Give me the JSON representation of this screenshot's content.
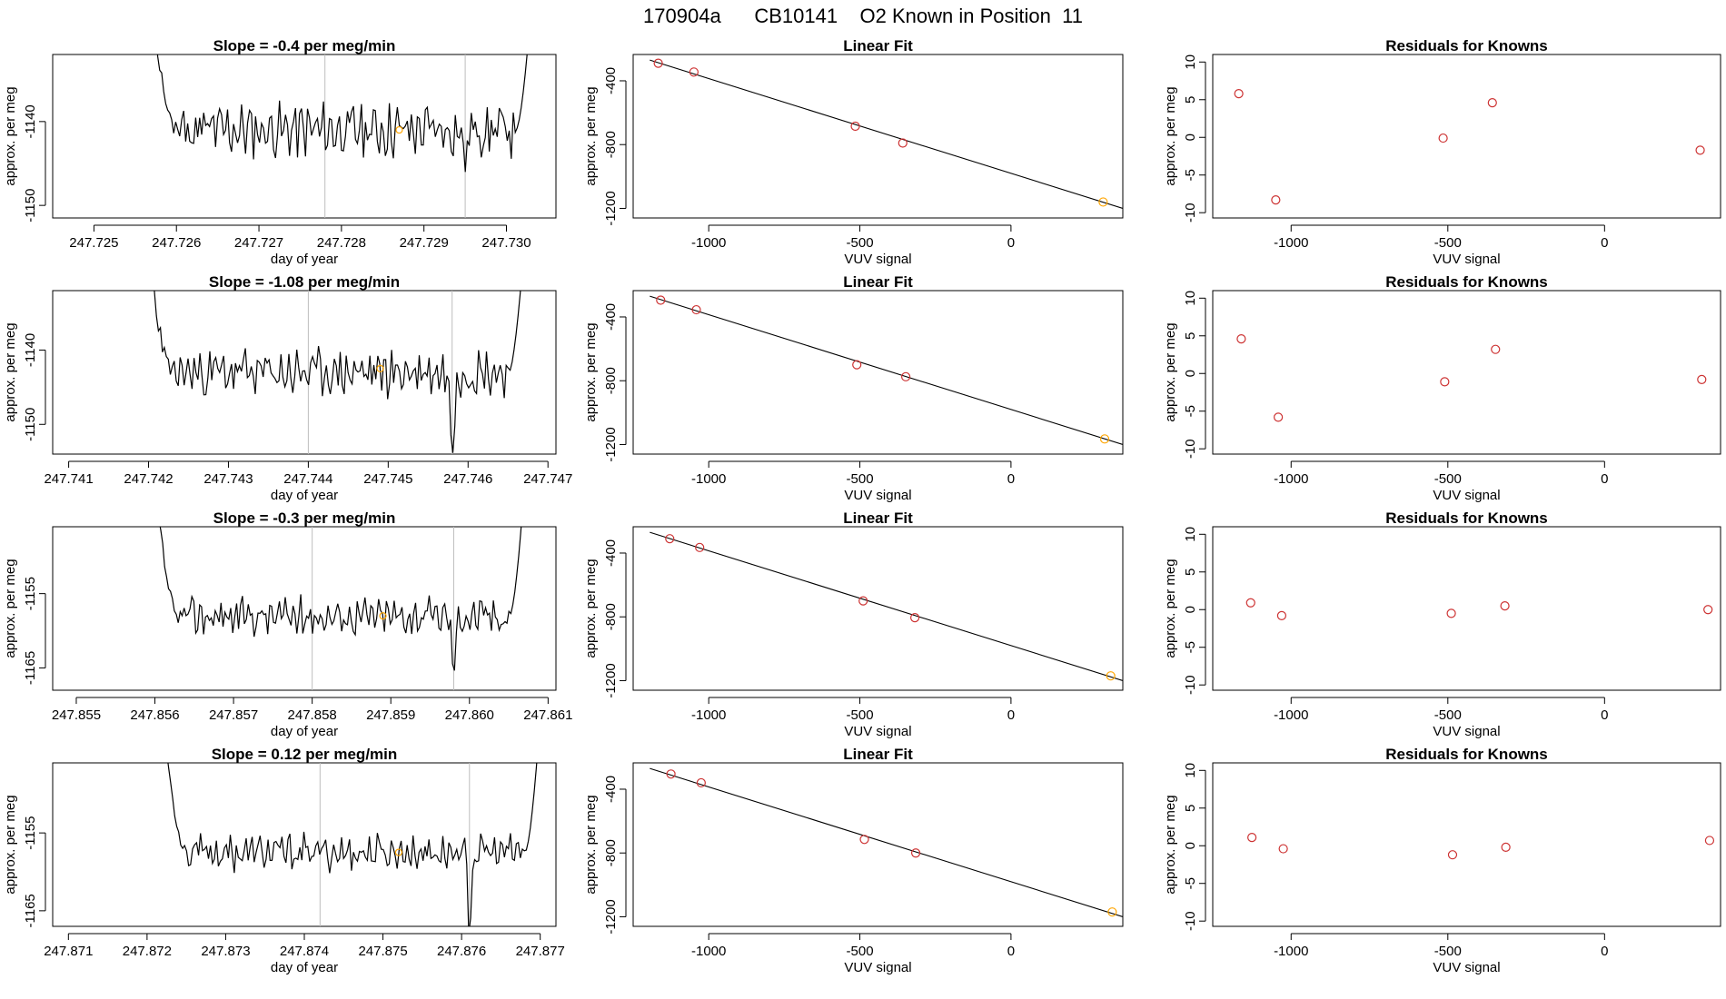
{
  "title": "170904a      CB10141    O2 Known in Position  11",
  "colors": {
    "trace": "#000000",
    "marker": "#ffa500",
    "residual": "#cd3333",
    "vline": "#bebebe",
    "fit": "#000000"
  },
  "chart_data": [
    {
      "type": "line",
      "panel": "trace-1",
      "row": 1,
      "title": "Slope =  -0.4  per meg/min",
      "xlabel": "day of year",
      "ylabel": "approx. per meg",
      "xlim": [
        247.7245,
        247.7306
      ],
      "xticks": [
        247.725,
        247.726,
        247.727,
        247.728,
        247.729,
        247.73
      ],
      "xtick_labels": [
        "247.725",
        "247.726",
        "247.727",
        "247.728",
        "247.729",
        "247.730"
      ],
      "ylim": [
        -1151.5,
        -1132
      ],
      "yticks": [
        -1140,
        -1150
      ],
      "ytick_labels": [
        "-1140",
        "-1150"
      ],
      "x_start": 247.7257,
      "x_end": 247.7303,
      "level": -1141,
      "noise": 2.5,
      "low_x": 247.7295,
      "low_y": -1145,
      "vlines": [
        247.7278,
        247.7295
      ],
      "marker": {
        "x": 247.7287,
        "y": -1141
      },
      "seed": 11
    },
    {
      "type": "line",
      "panel": "trace-2",
      "row": 2,
      "title": "Slope =  -1.08  per meg/min",
      "xlabel": "day of year",
      "ylabel": "approx. per meg",
      "xlim": [
        247.7408,
        247.7471
      ],
      "xticks": [
        247.741,
        247.742,
        247.743,
        247.744,
        247.745,
        247.746,
        247.747
      ],
      "xtick_labels": [
        "247.741",
        "247.742",
        "247.743",
        "247.744",
        "247.745",
        "247.746",
        "247.747"
      ],
      "ylim": [
        -1154,
        -1132
      ],
      "yticks": [
        -1140,
        -1150
      ],
      "ytick_labels": [
        "-1140",
        "-1150"
      ],
      "x_start": 247.742,
      "x_end": 247.7467,
      "level": -1143,
      "noise": 2.5,
      "low_x": 247.7458,
      "low_y": -1154,
      "vlines": [
        247.744,
        247.7458
      ],
      "marker": {
        "x": 247.7449,
        "y": -1142.5
      },
      "seed": 23
    },
    {
      "type": "line",
      "panel": "trace-3",
      "row": 3,
      "title": "Slope =  -0.3  per meg/min",
      "xlabel": "day of year",
      "ylabel": "approx. per meg",
      "xlim": [
        247.8547,
        247.8611
      ],
      "xticks": [
        247.855,
        247.856,
        247.857,
        247.858,
        247.859,
        247.86,
        247.861
      ],
      "xtick_labels": [
        "247.855",
        "247.856",
        "247.857",
        "247.858",
        "247.859",
        "247.860",
        "247.861"
      ],
      "ylim": [
        -1168,
        -1146
      ],
      "yticks": [
        -1155,
        -1165
      ],
      "ytick_labels": [
        "-1155",
        "-1165"
      ],
      "x_start": 247.856,
      "x_end": 247.8607,
      "level": -1158,
      "noise": 2.0,
      "low_x": 247.8598,
      "low_y": -1166,
      "vlines": [
        247.858,
        247.8598
      ],
      "marker": {
        "x": 247.8589,
        "y": -1158
      },
      "seed": 37
    },
    {
      "type": "line",
      "panel": "trace-4",
      "row": 4,
      "title": "Slope =  0.12  per meg/min",
      "xlabel": "day of year",
      "ylabel": "approx. per meg",
      "xlim": [
        247.8708,
        247.8772
      ],
      "xticks": [
        247.871,
        247.872,
        247.873,
        247.874,
        247.875,
        247.876,
        247.877
      ],
      "xtick_labels": [
        "247.871",
        "247.872",
        "247.873",
        "247.874",
        "247.875",
        "247.876",
        "247.877"
      ],
      "ylim": [
        -1167,
        -1146
      ],
      "yticks": [
        -1155,
        -1165
      ],
      "ytick_labels": [
        "-1155",
        "-1165"
      ],
      "x_start": 247.8722,
      "x_end": 247.877,
      "level": -1157.5,
      "noise": 1.8,
      "low_x": 247.8761,
      "low_y": -1167,
      "vlines": [
        247.8742,
        247.8761
      ],
      "marker": {
        "x": 247.8752,
        "y": -1157.5
      },
      "seed": 53
    },
    {
      "type": "scatter",
      "panel": "fit-1",
      "row": 1,
      "title": "Linear Fit",
      "xlabel": "VUV signal",
      "ylabel": "approx. per meg",
      "xlim": [
        -1250,
        370
      ],
      "ylim": [
        -1260,
        -235
      ],
      "xticks": [
        -1000,
        -500,
        0
      ],
      "xtick_labels": [
        "-1000",
        "-500",
        "0"
      ],
      "yticks": [
        -400,
        -800,
        -1200
      ],
      "ytick_labels": [
        "-400",
        "-800",
        "-1200"
      ],
      "x": [
        -1167,
        -1049,
        -515,
        -358,
        305
      ],
      "y": [
        -290,
        -345,
        -685,
        -790,
        -1160
      ],
      "fit_line": {
        "x": [
          -1195,
          370
        ],
        "y": [
          -270,
          -1200
        ]
      },
      "highlight_index": 4
    },
    {
      "type": "scatter",
      "panel": "fit-2",
      "row": 2,
      "title": "Linear Fit",
      "xlabel": "VUV signal",
      "ylabel": "approx. per meg",
      "xlim": [
        -1250,
        370
      ],
      "ylim": [
        -1260,
        -235
      ],
      "xticks": [
        -1000,
        -500,
        0
      ],
      "xtick_labels": [
        "-1000",
        "-500",
        "0"
      ],
      "yticks": [
        -400,
        -800,
        -1200
      ],
      "ytick_labels": [
        "-400",
        "-800",
        "-1200"
      ],
      "x": [
        -1159,
        -1041,
        -510,
        -348,
        310
      ],
      "y": [
        -295,
        -355,
        -700,
        -775,
        -1165
      ],
      "fit_line": {
        "x": [
          -1195,
          370
        ],
        "y": [
          -270,
          -1200
        ]
      },
      "highlight_index": 4
    },
    {
      "type": "scatter",
      "panel": "fit-3",
      "row": 3,
      "title": "Linear Fit",
      "xlabel": "VUV signal",
      "ylabel": "approx. per meg",
      "xlim": [
        -1250,
        370
      ],
      "ylim": [
        -1260,
        -235
      ],
      "xticks": [
        -1000,
        -500,
        0
      ],
      "xtick_labels": [
        "-1000",
        "-500",
        "0"
      ],
      "yticks": [
        -400,
        -800,
        -1200
      ],
      "ytick_labels": [
        "-400",
        "-800",
        "-1200"
      ],
      "x": [
        -1129,
        -1030,
        -489,
        -318,
        330
      ],
      "y": [
        -310,
        -365,
        -700,
        -805,
        -1170
      ],
      "fit_line": {
        "x": [
          -1195,
          370
        ],
        "y": [
          -270,
          -1200
        ]
      },
      "highlight_index": 4
    },
    {
      "type": "scatter",
      "panel": "fit-4",
      "row": 4,
      "title": "Linear Fit",
      "xlabel": "VUV signal",
      "ylabel": "approx. per meg",
      "xlim": [
        -1250,
        370
      ],
      "ylim": [
        -1260,
        -235
      ],
      "xticks": [
        -1000,
        -500,
        0
      ],
      "xtick_labels": [
        "-1000",
        "-500",
        "0"
      ],
      "yticks": [
        -400,
        -800,
        -1200
      ],
      "ytick_labels": [
        "-400",
        "-800",
        "-1200"
      ],
      "x": [
        -1125,
        -1025,
        -485,
        -315,
        335
      ],
      "y": [
        -305,
        -360,
        -715,
        -800,
        -1170
      ],
      "fit_line": {
        "x": [
          -1195,
          370
        ],
        "y": [
          -270,
          -1200
        ]
      },
      "highlight_index": 4
    },
    {
      "type": "scatter",
      "panel": "resid-1",
      "row": 1,
      "title": "Residuals for Knowns",
      "xlabel": "VUV signal",
      "ylabel": "approx. per meg",
      "xlim": [
        -1250,
        370
      ],
      "ylim": [
        -10.7,
        11
      ],
      "xticks": [
        -1000,
        -500,
        0
      ],
      "xtick_labels": [
        "-1000",
        "-500",
        "0"
      ],
      "yticks": [
        10,
        5,
        0,
        -5,
        -10
      ],
      "ytick_labels": [
        "10",
        "5",
        "0",
        "-5",
        "-10"
      ],
      "x": [
        -1167,
        -1049,
        -515,
        -358,
        305
      ],
      "y": [
        5.8,
        -8.3,
        -0.1,
        4.6,
        -1.7
      ]
    },
    {
      "type": "scatter",
      "panel": "resid-2",
      "row": 2,
      "title": "Residuals for Knowns",
      "xlabel": "VUV signal",
      "ylabel": "approx. per meg",
      "xlim": [
        -1250,
        370
      ],
      "ylim": [
        -10.7,
        11
      ],
      "xticks": [
        -1000,
        -500,
        0
      ],
      "xtick_labels": [
        "-1000",
        "-500",
        "0"
      ],
      "yticks": [
        10,
        5,
        0,
        -5,
        -10
      ],
      "ytick_labels": [
        "10",
        "5",
        "0",
        "-5",
        "-10"
      ],
      "x": [
        -1159,
        -1041,
        -510,
        -348,
        310
      ],
      "y": [
        4.6,
        -5.8,
        -1.1,
        3.2,
        -0.8
      ]
    },
    {
      "type": "scatter",
      "panel": "resid-3",
      "row": 3,
      "title": "Residuals for Knowns",
      "xlabel": "VUV signal",
      "ylabel": "approx. per meg",
      "xlim": [
        -1250,
        370
      ],
      "ylim": [
        -10.7,
        11
      ],
      "xticks": [
        -1000,
        -500,
        0
      ],
      "xtick_labels": [
        "-1000",
        "-500",
        "0"
      ],
      "yticks": [
        10,
        5,
        0,
        -5,
        -10
      ],
      "ytick_labels": [
        "10",
        "5",
        "0",
        "-5",
        "-10"
      ],
      "x": [
        -1129,
        -1030,
        -489,
        -318,
        330
      ],
      "y": [
        0.9,
        -0.8,
        -0.5,
        0.5,
        0.0
      ]
    },
    {
      "type": "scatter",
      "panel": "resid-4",
      "row": 4,
      "title": "Residuals for Knowns",
      "xlabel": "VUV signal",
      "ylabel": "approx. per meg",
      "xlim": [
        -1250,
        370
      ],
      "ylim": [
        -10.7,
        11
      ],
      "xticks": [
        -1000,
        -500,
        0
      ],
      "xtick_labels": [
        "-1000",
        "-500",
        "0"
      ],
      "yticks": [
        10,
        5,
        0,
        -5,
        -10
      ],
      "ytick_labels": [
        "10",
        "5",
        "0",
        "-5",
        "-10"
      ],
      "x": [
        -1125,
        -1025,
        -485,
        -315,
        335
      ],
      "y": [
        1.1,
        -0.4,
        -1.2,
        -0.2,
        0.7
      ]
    }
  ]
}
